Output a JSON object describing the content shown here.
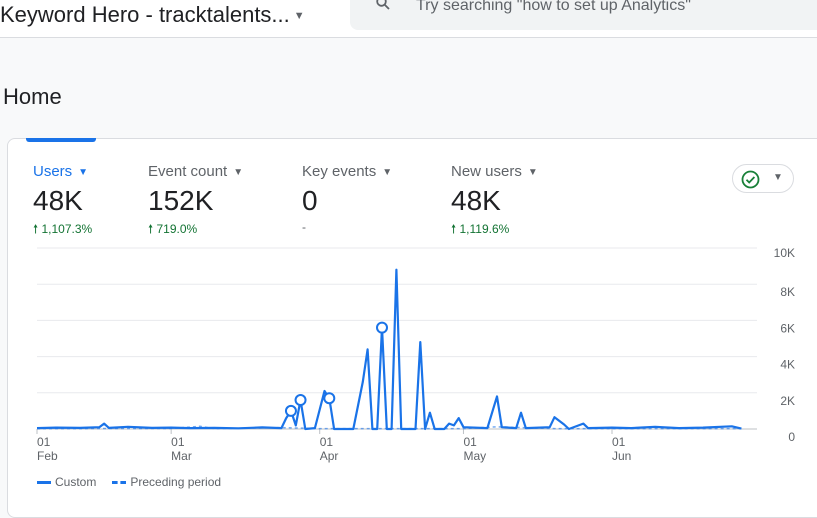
{
  "header": {
    "property_name": "Keyword Hero - tracktalents...",
    "search_placeholder": "Try searching \"how to set up Analytics\""
  },
  "page_title": "Home",
  "metrics": [
    {
      "label": "Users",
      "value": "48K",
      "change": "1,107.3%",
      "active": true
    },
    {
      "label": "Event count",
      "value": "152K",
      "change": "719.0%"
    },
    {
      "label": "Key events",
      "value": "0",
      "change": "-"
    },
    {
      "label": "New users",
      "value": "48K",
      "change": "1,119.6%"
    }
  ],
  "colors": {
    "accent": "#1a73e8",
    "positive": "#137333",
    "check": "#188038"
  },
  "icons": {
    "search": "search-icon",
    "compare": "check-circle-icon",
    "dropdown": "caret-down-icon"
  },
  "chart_data": {
    "type": "line",
    "y_ticks": [
      "10K",
      "8K",
      "6K",
      "4K",
      "2K",
      "0"
    ],
    "ylim": [
      0,
      10000
    ],
    "x_ticks": [
      {
        "day": "01",
        "month": "Feb",
        "date": "02-01"
      },
      {
        "day": "01",
        "month": "Mar",
        "date": "03-01"
      },
      {
        "day": "01",
        "month": "Apr",
        "date": "04-01"
      },
      {
        "day": "01",
        "month": "May",
        "date": "05-01"
      },
      {
        "day": "01",
        "month": "Jun",
        "date": "06-01"
      }
    ],
    "grid": true,
    "legend_position": "bottom-left",
    "series": [
      {
        "name": "Custom",
        "style": "solid",
        "points": [
          [
            "02-01",
            50
          ],
          [
            "02-05",
            80
          ],
          [
            "02-10",
            60
          ],
          [
            "02-14",
            100
          ],
          [
            "02-15",
            300
          ],
          [
            "02-16",
            60
          ],
          [
            "02-20",
            120
          ],
          [
            "02-25",
            60
          ],
          [
            "03-01",
            80
          ],
          [
            "03-05",
            50
          ],
          [
            "03-10",
            60
          ],
          [
            "03-15",
            40
          ],
          [
            "03-20",
            90
          ],
          [
            "03-24",
            50
          ],
          [
            "03-25",
            600
          ],
          [
            "03-26",
            1000
          ],
          [
            "03-27",
            200
          ],
          [
            "03-28",
            1600
          ],
          [
            "03-29",
            0
          ],
          [
            "03-31",
            50
          ],
          [
            "04-02",
            2100
          ],
          [
            "04-03",
            1700
          ],
          [
            "04-04",
            0
          ],
          [
            "04-08",
            0
          ],
          [
            "04-10",
            2600
          ],
          [
            "04-11",
            4400
          ],
          [
            "04-12",
            0
          ],
          [
            "04-13",
            0
          ],
          [
            "04-14",
            5600
          ],
          [
            "04-15",
            0
          ],
          [
            "04-16",
            0
          ],
          [
            "04-17",
            8800
          ],
          [
            "04-18",
            0
          ],
          [
            "04-21",
            0
          ],
          [
            "04-22",
            4800
          ],
          [
            "04-23",
            0
          ],
          [
            "04-24",
            900
          ],
          [
            "04-25",
            0
          ],
          [
            "04-27",
            0
          ],
          [
            "04-28",
            300
          ],
          [
            "04-29",
            200
          ],
          [
            "04-30",
            600
          ],
          [
            "05-01",
            100
          ],
          [
            "05-06",
            50
          ],
          [
            "05-08",
            1800
          ],
          [
            "05-09",
            100
          ],
          [
            "05-12",
            50
          ],
          [
            "05-13",
            900
          ],
          [
            "05-14",
            50
          ],
          [
            "05-19",
            100
          ],
          [
            "05-20",
            650
          ],
          [
            "05-22",
            250
          ],
          [
            "05-23",
            0
          ],
          [
            "05-26",
            300
          ],
          [
            "05-27",
            50
          ],
          [
            "06-01",
            80
          ],
          [
            "06-05",
            50
          ],
          [
            "06-10",
            120
          ],
          [
            "06-15",
            50
          ],
          [
            "06-20",
            80
          ],
          [
            "06-26",
            150
          ],
          [
            "06-28",
            20
          ]
        ]
      },
      {
        "name": "Preceding period",
        "style": "dashed",
        "points": [
          [
            "02-01",
            20
          ],
          [
            "03-01",
            30
          ],
          [
            "03-07",
            150
          ],
          [
            "03-10",
            20
          ],
          [
            "03-24",
            80
          ],
          [
            "04-01",
            20
          ],
          [
            "05-01",
            20
          ],
          [
            "05-08",
            120
          ],
          [
            "05-20",
            20
          ],
          [
            "06-28",
            20
          ]
        ]
      }
    ]
  }
}
